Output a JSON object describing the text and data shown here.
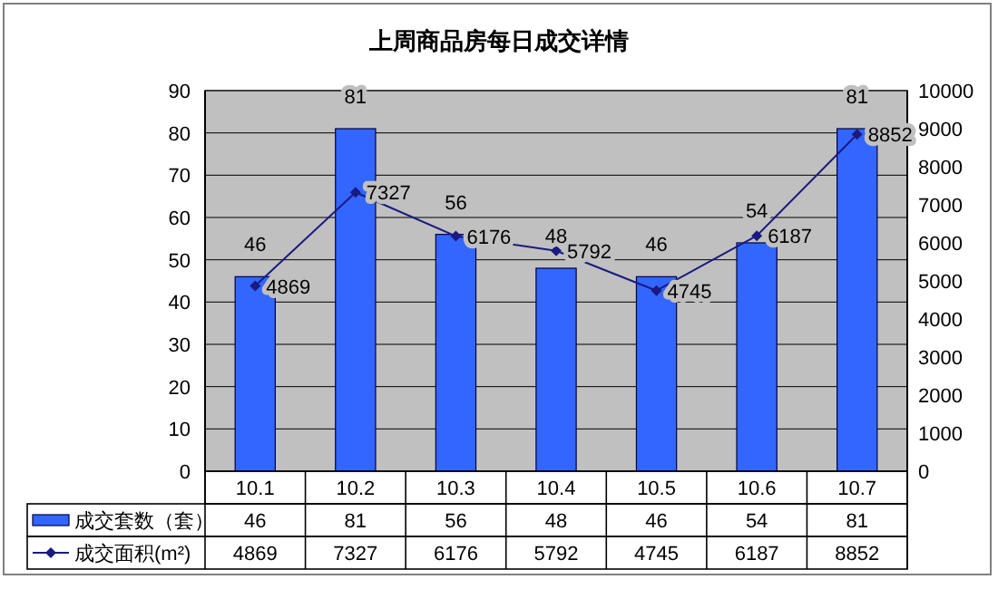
{
  "chart_data": {
    "type": "bar",
    "title": "上周商品房每日成交详情",
    "categories": [
      "10.1",
      "10.2",
      "10.3",
      "10.4",
      "10.5",
      "10.6",
      "10.7"
    ],
    "series": [
      {
        "name": "成交套数（套）",
        "type": "bar",
        "color": "#3366ff",
        "values": [
          46,
          81,
          56,
          48,
          46,
          54,
          81
        ]
      },
      {
        "name": "成交面积(m²)",
        "type": "line",
        "axis": "y2",
        "color": "#1a1a80",
        "marker": "diamond",
        "line_style": "solid",
        "values": [
          4869,
          7327,
          6176,
          5792,
          4745,
          6187,
          8852
        ]
      }
    ],
    "ylim": [
      0,
      90
    ],
    "yticks": [
      0,
      10,
      20,
      30,
      40,
      50,
      60,
      70,
      80,
      90
    ],
    "y2lim": [
      0,
      10000
    ],
    "y2ticks": [
      0,
      1000,
      2000,
      3000,
      4000,
      5000,
      6000,
      7000,
      8000,
      9000,
      10000
    ],
    "grid": "y",
    "legend": "bottom",
    "data_labels": true,
    "annotations": [
      "46",
      "81",
      "56",
      "48",
      "46",
      "54",
      "81",
      "4869",
      "7327",
      "6176",
      "5792",
      "4745",
      "6187",
      "8852"
    ]
  }
}
